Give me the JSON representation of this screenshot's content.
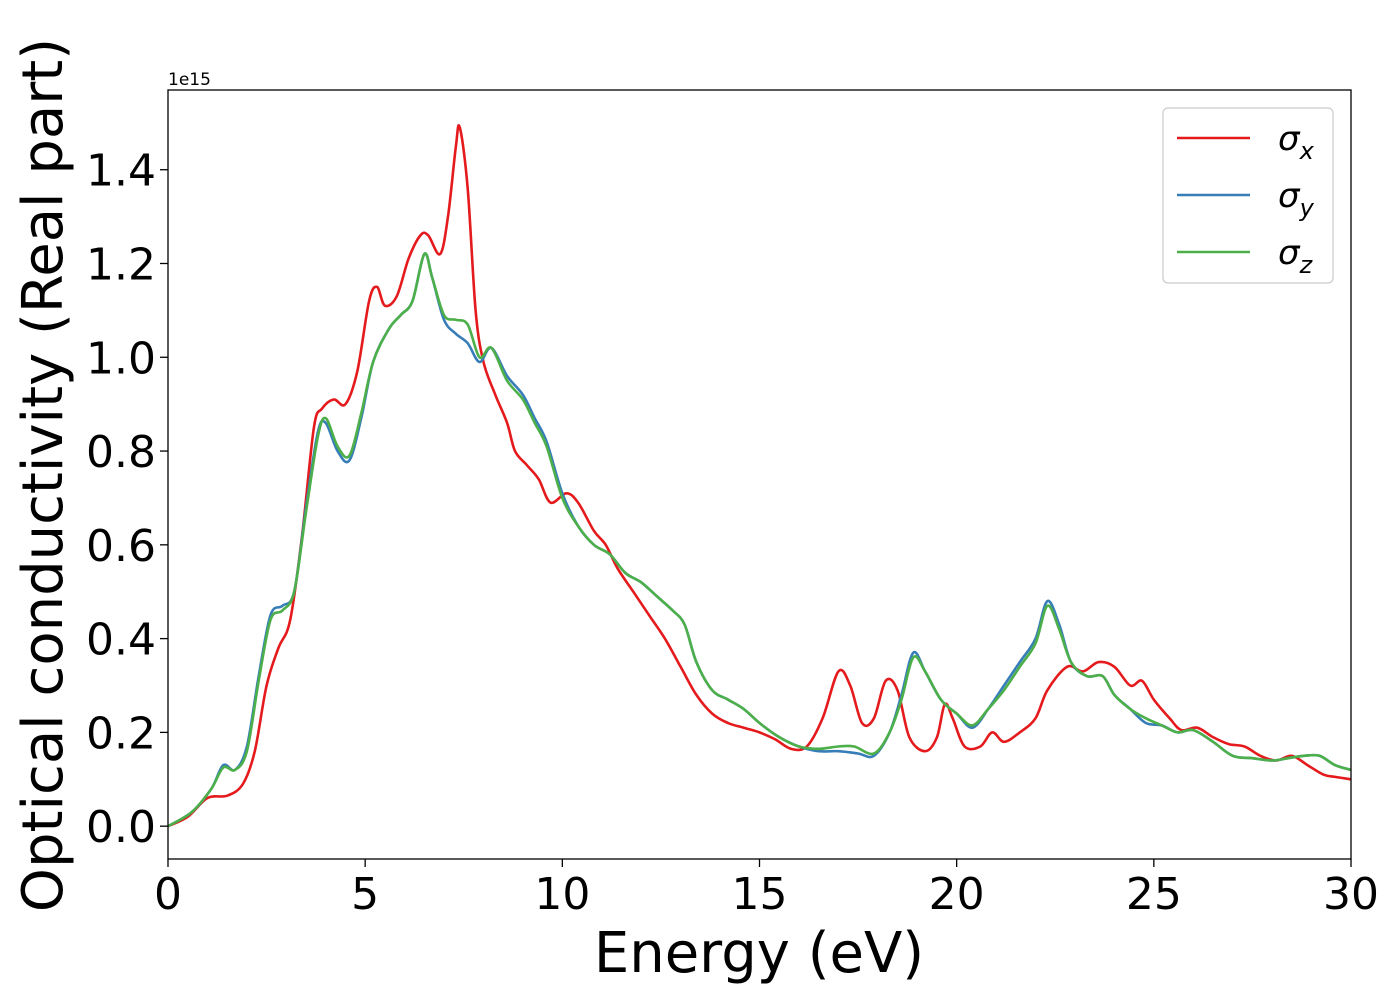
{
  "chart_data": {
    "type": "line",
    "xlabel": "Energy (eV)",
    "ylabel": "Optical conductivity (Real part)",
    "offset_label": "1e15",
    "xlim": [
      0,
      30
    ],
    "ylim": [
      -0.07,
      1.57
    ],
    "xticks": [
      0,
      5,
      10,
      15,
      20,
      25,
      30
    ],
    "xtick_labels": [
      "0",
      "5",
      "10",
      "15",
      "20",
      "25",
      "30"
    ],
    "yticks": [
      0.0,
      0.2,
      0.4,
      0.6,
      0.8,
      1.0,
      1.2,
      1.4
    ],
    "ytick_labels": [
      "0.0",
      "0.2",
      "0.4",
      "0.6",
      "0.8",
      "1.0",
      "1.2",
      "1.4"
    ],
    "grid": false,
    "legend_position": "top-right",
    "series": [
      {
        "name": "σx",
        "symbol": "σ",
        "subscript": "x",
        "color": "#e41a1c",
        "points": [
          [
            0,
            0.0
          ],
          [
            0.5,
            0.02
          ],
          [
            1.0,
            0.06
          ],
          [
            1.5,
            0.065
          ],
          [
            1.9,
            0.09
          ],
          [
            2.2,
            0.16
          ],
          [
            2.5,
            0.3
          ],
          [
            2.8,
            0.38
          ],
          [
            3.1,
            0.44
          ],
          [
            3.4,
            0.62
          ],
          [
            3.7,
            0.85
          ],
          [
            3.9,
            0.89
          ],
          [
            4.2,
            0.91
          ],
          [
            4.5,
            0.9
          ],
          [
            4.8,
            0.97
          ],
          [
            5.1,
            1.12
          ],
          [
            5.3,
            1.15
          ],
          [
            5.5,
            1.11
          ],
          [
            5.8,
            1.13
          ],
          [
            6.1,
            1.21
          ],
          [
            6.4,
            1.26
          ],
          [
            6.6,
            1.26
          ],
          [
            6.9,
            1.22
          ],
          [
            7.1,
            1.3
          ],
          [
            7.3,
            1.45
          ],
          [
            7.4,
            1.49
          ],
          [
            7.6,
            1.36
          ],
          [
            7.8,
            1.1
          ],
          [
            8.0,
            0.99
          ],
          [
            8.3,
            0.92
          ],
          [
            8.6,
            0.86
          ],
          [
            8.8,
            0.8
          ],
          [
            9.1,
            0.77
          ],
          [
            9.4,
            0.74
          ],
          [
            9.7,
            0.69
          ],
          [
            10.1,
            0.71
          ],
          [
            10.4,
            0.69
          ],
          [
            10.8,
            0.63
          ],
          [
            11.1,
            0.6
          ],
          [
            11.4,
            0.55
          ],
          [
            11.8,
            0.5
          ],
          [
            12.2,
            0.45
          ],
          [
            12.6,
            0.4
          ],
          [
            13.0,
            0.34
          ],
          [
            13.4,
            0.28
          ],
          [
            13.8,
            0.24
          ],
          [
            14.2,
            0.22
          ],
          [
            14.6,
            0.21
          ],
          [
            15.0,
            0.2
          ],
          [
            15.4,
            0.185
          ],
          [
            15.8,
            0.165
          ],
          [
            16.2,
            0.17
          ],
          [
            16.6,
            0.23
          ],
          [
            17.0,
            0.33
          ],
          [
            17.3,
            0.3
          ],
          [
            17.6,
            0.22
          ],
          [
            17.9,
            0.23
          ],
          [
            18.2,
            0.31
          ],
          [
            18.5,
            0.29
          ],
          [
            18.8,
            0.19
          ],
          [
            19.2,
            0.16
          ],
          [
            19.5,
            0.19
          ],
          [
            19.7,
            0.26
          ],
          [
            19.9,
            0.23
          ],
          [
            20.2,
            0.17
          ],
          [
            20.6,
            0.17
          ],
          [
            20.9,
            0.2
          ],
          [
            21.2,
            0.18
          ],
          [
            21.6,
            0.2
          ],
          [
            22.0,
            0.23
          ],
          [
            22.3,
            0.29
          ],
          [
            22.8,
            0.34
          ],
          [
            23.2,
            0.33
          ],
          [
            23.6,
            0.35
          ],
          [
            24.0,
            0.34
          ],
          [
            24.4,
            0.3
          ],
          [
            24.7,
            0.31
          ],
          [
            25.0,
            0.27
          ],
          [
            25.4,
            0.23
          ],
          [
            25.7,
            0.205
          ],
          [
            26.1,
            0.21
          ],
          [
            26.5,
            0.19
          ],
          [
            26.9,
            0.175
          ],
          [
            27.3,
            0.17
          ],
          [
            27.7,
            0.15
          ],
          [
            28.1,
            0.14
          ],
          [
            28.5,
            0.15
          ],
          [
            28.9,
            0.13
          ],
          [
            29.3,
            0.11
          ],
          [
            29.6,
            0.105
          ],
          [
            30.0,
            0.1
          ]
        ]
      },
      {
        "name": "σy",
        "symbol": "σ",
        "subscript": "y",
        "color": "#377eb8",
        "points": [
          [
            0,
            0.0
          ],
          [
            0.6,
            0.03
          ],
          [
            1.1,
            0.08
          ],
          [
            1.4,
            0.13
          ],
          [
            1.7,
            0.12
          ],
          [
            2.0,
            0.17
          ],
          [
            2.3,
            0.32
          ],
          [
            2.6,
            0.45
          ],
          [
            2.9,
            0.47
          ],
          [
            3.2,
            0.5
          ],
          [
            3.5,
            0.68
          ],
          [
            3.8,
            0.84
          ],
          [
            4.0,
            0.86
          ],
          [
            4.3,
            0.8
          ],
          [
            4.6,
            0.78
          ],
          [
            4.9,
            0.87
          ],
          [
            5.2,
            0.99
          ],
          [
            5.6,
            1.06
          ],
          [
            5.9,
            1.09
          ],
          [
            6.2,
            1.12
          ],
          [
            6.5,
            1.22
          ],
          [
            6.7,
            1.17
          ],
          [
            7.0,
            1.08
          ],
          [
            7.3,
            1.05
          ],
          [
            7.6,
            1.03
          ],
          [
            7.9,
            0.99
          ],
          [
            8.2,
            1.02
          ],
          [
            8.6,
            0.96
          ],
          [
            9.0,
            0.92
          ],
          [
            9.3,
            0.87
          ],
          [
            9.6,
            0.82
          ],
          [
            10.0,
            0.71
          ],
          [
            10.4,
            0.64
          ],
          [
            10.8,
            0.6
          ],
          [
            11.2,
            0.58
          ],
          [
            11.6,
            0.54
          ],
          [
            12.0,
            0.52
          ],
          [
            12.4,
            0.49
          ],
          [
            12.8,
            0.46
          ],
          [
            13.1,
            0.43
          ],
          [
            13.4,
            0.35
          ],
          [
            13.8,
            0.29
          ],
          [
            14.2,
            0.27
          ],
          [
            14.6,
            0.25
          ],
          [
            15.0,
            0.22
          ],
          [
            15.5,
            0.19
          ],
          [
            16.0,
            0.17
          ],
          [
            16.5,
            0.16
          ],
          [
            17.0,
            0.16
          ],
          [
            17.5,
            0.155
          ],
          [
            17.9,
            0.15
          ],
          [
            18.3,
            0.2
          ],
          [
            18.6,
            0.28
          ],
          [
            18.9,
            0.37
          ],
          [
            19.2,
            0.33
          ],
          [
            19.6,
            0.27
          ],
          [
            20.0,
            0.24
          ],
          [
            20.4,
            0.21
          ],
          [
            20.8,
            0.25
          ],
          [
            21.2,
            0.3
          ],
          [
            21.6,
            0.35
          ],
          [
            22.0,
            0.4
          ],
          [
            22.3,
            0.48
          ],
          [
            22.6,
            0.43
          ],
          [
            22.9,
            0.35
          ],
          [
            23.3,
            0.32
          ],
          [
            23.7,
            0.32
          ],
          [
            24.0,
            0.28
          ],
          [
            24.4,
            0.25
          ],
          [
            24.8,
            0.22
          ],
          [
            25.2,
            0.215
          ],
          [
            25.6,
            0.2
          ],
          [
            26.0,
            0.205
          ],
          [
            26.5,
            0.18
          ],
          [
            27.0,
            0.15
          ],
          [
            27.5,
            0.145
          ],
          [
            28.0,
            0.14
          ],
          [
            28.4,
            0.145
          ],
          [
            28.8,
            0.15
          ],
          [
            29.2,
            0.15
          ],
          [
            29.6,
            0.13
          ],
          [
            30.0,
            0.12
          ]
        ]
      },
      {
        "name": "σz",
        "symbol": "σ",
        "subscript": "z",
        "color": "#4daf4a",
        "points": [
          [
            0,
            0.0
          ],
          [
            0.6,
            0.03
          ],
          [
            1.1,
            0.08
          ],
          [
            1.4,
            0.125
          ],
          [
            1.7,
            0.12
          ],
          [
            2.0,
            0.16
          ],
          [
            2.3,
            0.31
          ],
          [
            2.6,
            0.44
          ],
          [
            2.9,
            0.46
          ],
          [
            3.2,
            0.5
          ],
          [
            3.5,
            0.67
          ],
          [
            3.8,
            0.83
          ],
          [
            4.0,
            0.87
          ],
          [
            4.3,
            0.81
          ],
          [
            4.6,
            0.79
          ],
          [
            4.9,
            0.88
          ],
          [
            5.2,
            0.99
          ],
          [
            5.6,
            1.06
          ],
          [
            5.9,
            1.09
          ],
          [
            6.2,
            1.12
          ],
          [
            6.5,
            1.22
          ],
          [
            6.7,
            1.17
          ],
          [
            7.0,
            1.09
          ],
          [
            7.3,
            1.08
          ],
          [
            7.6,
            1.07
          ],
          [
            7.9,
            1.0
          ],
          [
            8.2,
            1.02
          ],
          [
            8.6,
            0.95
          ],
          [
            9.0,
            0.91
          ],
          [
            9.3,
            0.86
          ],
          [
            9.6,
            0.81
          ],
          [
            10.0,
            0.7
          ],
          [
            10.4,
            0.64
          ],
          [
            10.8,
            0.6
          ],
          [
            11.2,
            0.58
          ],
          [
            11.6,
            0.54
          ],
          [
            12.0,
            0.52
          ],
          [
            12.4,
            0.49
          ],
          [
            12.8,
            0.46
          ],
          [
            13.1,
            0.43
          ],
          [
            13.4,
            0.35
          ],
          [
            13.8,
            0.29
          ],
          [
            14.2,
            0.27
          ],
          [
            14.6,
            0.25
          ],
          [
            15.0,
            0.22
          ],
          [
            15.5,
            0.19
          ],
          [
            16.0,
            0.17
          ],
          [
            16.5,
            0.165
          ],
          [
            17.0,
            0.17
          ],
          [
            17.4,
            0.17
          ],
          [
            17.9,
            0.155
          ],
          [
            18.3,
            0.2
          ],
          [
            18.6,
            0.27
          ],
          [
            18.9,
            0.36
          ],
          [
            19.2,
            0.33
          ],
          [
            19.6,
            0.27
          ],
          [
            20.0,
            0.24
          ],
          [
            20.4,
            0.215
          ],
          [
            20.8,
            0.25
          ],
          [
            21.2,
            0.29
          ],
          [
            21.6,
            0.34
          ],
          [
            22.0,
            0.39
          ],
          [
            22.3,
            0.47
          ],
          [
            22.6,
            0.42
          ],
          [
            22.9,
            0.35
          ],
          [
            23.3,
            0.32
          ],
          [
            23.7,
            0.32
          ],
          [
            24.0,
            0.28
          ],
          [
            24.4,
            0.25
          ],
          [
            24.8,
            0.23
          ],
          [
            25.2,
            0.215
          ],
          [
            25.6,
            0.2
          ],
          [
            26.0,
            0.205
          ],
          [
            26.5,
            0.18
          ],
          [
            27.0,
            0.15
          ],
          [
            27.5,
            0.145
          ],
          [
            28.0,
            0.14
          ],
          [
            28.4,
            0.145
          ],
          [
            28.8,
            0.15
          ],
          [
            29.2,
            0.15
          ],
          [
            29.6,
            0.13
          ],
          [
            30.0,
            0.12
          ]
        ]
      }
    ]
  }
}
